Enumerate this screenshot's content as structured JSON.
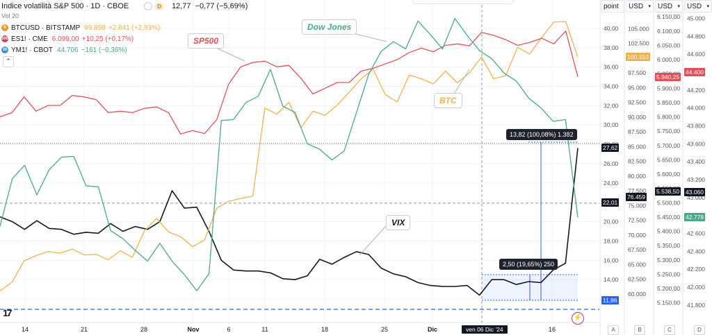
{
  "header": {
    "series_title": "Indice volatilità S&P 500 · 1D · CBOE",
    "close_value": "12,77",
    "change": "−0,77 (−5,69%)",
    "volume_label": "Vol 20",
    "flag_label": "D"
  },
  "legend": [
    {
      "icon": "B",
      "name": "BTCUSD · BITSTAMP",
      "value": "99.898",
      "change": "+2.841 (+2,93%)",
      "color": "#f0b34a"
    },
    {
      "icon": "500",
      "name": "ES1! · CME",
      "value": "6.099,00",
      "change": "+10,25 (+0,17%)",
      "color": "#e0505a"
    },
    {
      "icon": "30",
      "name": "YM1! · CBOT",
      "value": "44.706",
      "change": "−161 (−0,36%)",
      "color": "#4aa88a"
    }
  ],
  "scales": [
    {
      "label": "point",
      "ticks": [
        "40,00",
        "38,00",
        "36,00",
        "34,00",
        "32,00",
        "30,00",
        "28,00",
        "26,00",
        "24,00",
        "22,00",
        "20,00",
        "18,00",
        "16,00",
        "14,00",
        "12,00"
      ]
    },
    {
      "label": "USD",
      "ticks": [
        "105.000",
        "102.500",
        "100.000",
        "97.500",
        "95.000",
        "92.500",
        "90.000",
        "87.500",
        "85.000",
        "82.500",
        "80.000",
        "77.500",
        "75.000",
        "72.500",
        "70.000",
        "67.500",
        "65.000",
        "62.500",
        "60.000"
      ]
    },
    {
      "label": "USD",
      "ticks": [
        "6.150,00",
        "6.100,00",
        "6.050,00",
        "6.000,00",
        "5.950,00",
        "5.900,00",
        "5.850,00",
        "5.800,00",
        "5.750,00",
        "5.700,00",
        "5.650,00",
        "5.600,00",
        "5.550,00",
        "5.500,00",
        "5.450,00",
        "5.400,00",
        "5.350,00",
        "5.300,00",
        "5.250,00",
        "5.200,00",
        "5.150,00"
      ]
    },
    {
      "label": "USD",
      "ticks": [
        "45.000",
        "44.800",
        "44.600",
        "44.400",
        "44.200",
        "44.000",
        "43.800",
        "43.600",
        "43.400",
        "43.200",
        "43.000",
        "42.800",
        "42.600",
        "42.400",
        "42.200",
        "42.000",
        "41.800"
      ]
    }
  ],
  "price_tags": [
    {
      "text": "27,62",
      "scale": 0,
      "value": 27.62,
      "bg": "#131722"
    },
    {
      "text": "22,01",
      "scale": 0,
      "value": 22.01,
      "bg": "#131722"
    },
    {
      "text": "11,86",
      "scale": 0,
      "value": 11.86,
      "bg": "#2962ff"
    },
    {
      "text": "100.153",
      "scale": 1,
      "value": 100153,
      "bg": "#f0b34a"
    },
    {
      "text": "76.459",
      "scale": 1,
      "value": 76459,
      "bg": "#131722"
    },
    {
      "text": "5.940,25",
      "scale": 2,
      "value": 5940.25,
      "bg": "#e0505a"
    },
    {
      "text": "5.538,50",
      "scale": 2,
      "value": 5538.5,
      "bg": "#131722"
    },
    {
      "text": "44.400",
      "scale": 3,
      "value": 44400,
      "bg": "#e0505a"
    },
    {
      "text": "43.060",
      "scale": 3,
      "value": 43060,
      "bg": "#131722"
    },
    {
      "text": "42.778",
      "scale": 3,
      "value": 42778,
      "bg": "#4aa88a"
    }
  ],
  "annotations": {
    "sp500": "SP500",
    "dow": "Dow Jones",
    "btc": "BTC",
    "vix": "VIX"
  },
  "measures": [
    {
      "text": "13,82 (100,08%) 1.382"
    },
    {
      "text": "2,50 (19,65%) 250"
    }
  ],
  "cursor_date": "ven 06 Dic '24",
  "column_headers": [
    "A",
    "B",
    "C",
    "D"
  ],
  "chart_data": {
    "type": "line",
    "x_labels": [
      "14",
      "21",
      "28",
      "Nov",
      "6",
      "11",
      "18",
      "25",
      "Dic",
      "16"
    ],
    "ylim": {
      "vix": [
        11,
        41.5
      ],
      "btc": [
        57500,
        107500
      ],
      "es": [
        5130,
        6160
      ],
      "ym": [
        41760,
        45050
      ]
    },
    "series": [
      {
        "name": "VIX",
        "axis": "vix",
        "color": "#131722",
        "values": [
          20.5,
          20,
          19.2,
          20.1,
          19.3,
          19.2,
          18.7,
          18.9,
          18.8,
          19.8,
          19,
          19.5,
          19.2,
          20,
          23.2,
          21.4,
          21.5,
          19,
          16,
          15,
          14.9,
          14.9,
          14.7,
          14.1,
          14,
          14.4,
          16.1,
          15.6,
          16.3,
          16.9,
          16.6,
          15.2,
          14.6,
          14.3,
          13.7,
          13.4,
          13.3,
          13.3,
          13.4,
          12.4,
          14,
          14,
          13.5,
          13.8,
          13.7,
          15,
          15.7,
          27.62
        ]
      },
      {
        "name": "BTC",
        "axis": "btc",
        "color": "#f0b34a",
        "values": [
          60500,
          62000,
          65600,
          66500,
          67200,
          66900,
          67600,
          66600,
          66700,
          65800,
          67300,
          66200,
          70700,
          72800,
          70500,
          69700,
          68000,
          69200,
          74500,
          75700,
          76200,
          76600,
          91500,
          90500,
          92500,
          88200,
          91000,
          90300,
          92000,
          94200,
          96500,
          98100,
          93800,
          92600,
          97100,
          96500,
          95600,
          97800,
          95800,
          97500,
          100200,
          96500,
          97000,
          101800,
          100700,
          103500,
          106100,
          106200,
          100153
        ]
      },
      {
        "name": "ES1!",
        "axis": "es",
        "color": "#e0505a",
        "values": [
          5800,
          5815,
          5870,
          5820,
          5840,
          5840,
          5875,
          5870,
          5860,
          5815,
          5820,
          5815,
          5830,
          5835,
          5815,
          5740,
          5752,
          5742,
          5790,
          5915,
          5975,
          5990,
          5995,
          5975,
          5980,
          5935,
          5880,
          5900,
          5920,
          5920,
          5960,
          5970,
          5985,
          6000,
          6025,
          6040,
          6028,
          6050,
          6055,
          6048,
          6095,
          6085,
          6070,
          6050,
          6060,
          6075,
          6055,
          6100,
          5940.25
        ]
      },
      {
        "name": "YM1!",
        "axis": "ym",
        "color": "#4aa88a",
        "values": [
          42680,
          43210,
          43360,
          43030,
          43310,
          43450,
          43460,
          43130,
          43120,
          42630,
          42540,
          42410,
          42290,
          42490,
          42290,
          42140,
          41960,
          42150,
          43860,
          43870,
          44060,
          44130,
          44430,
          44020,
          43950,
          43600,
          43540,
          43420,
          43520,
          43950,
          44380,
          44630,
          44740,
          44660,
          44970,
          44820,
          44660,
          45000,
          44810,
          44640,
          44550,
          44390,
          44300,
          44110,
          44000,
          43850,
          43870,
          42778
        ]
      }
    ]
  }
}
